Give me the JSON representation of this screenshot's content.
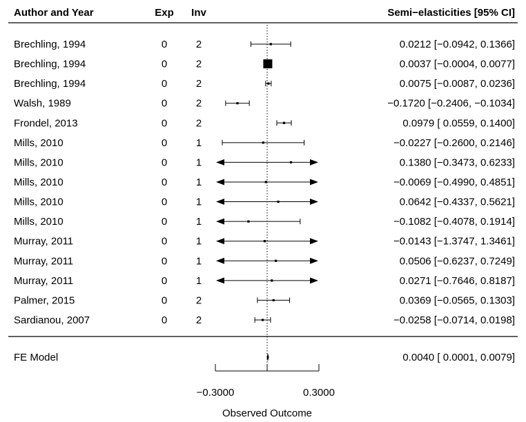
{
  "chart_data": {
    "type": "forest",
    "headers": {
      "study": "Author and Year",
      "exp": "Exp",
      "inv": "Inv",
      "estimate": "Semi−elasticities [95% CI]"
    },
    "xlabel": "Observed Outcome",
    "xlim": [
      -0.3,
      0.3
    ],
    "xticks": [
      -0.3,
      0,
      0.3
    ],
    "xtick_labels": [
      "−0.3000",
      "",
      "0.3000"
    ],
    "reference_line": 0,
    "rows": [
      {
        "study": "Brechling, 1994",
        "exp": "0",
        "inv": "2",
        "est": 0.0212,
        "lo": -0.0942,
        "hi": 0.1366,
        "label": "0.0212 [−0.0942,  0.1366]"
      },
      {
        "study": "Brechling, 1994",
        "exp": "0",
        "inv": "2",
        "est": 0.0037,
        "lo": -0.0004,
        "hi": 0.0077,
        "label": "0.0037 [−0.0004,  0.0077]"
      },
      {
        "study": "Brechling, 1994",
        "exp": "0",
        "inv": "2",
        "est": 0.0075,
        "lo": -0.0087,
        "hi": 0.0236,
        "label": "0.0075 [−0.0087,  0.0236]"
      },
      {
        "study": "Walsh, 1989",
        "exp": "0",
        "inv": "2",
        "est": -0.172,
        "lo": -0.2406,
        "hi": -0.1034,
        "label": "−0.1720 [−0.2406, −0.1034]"
      },
      {
        "study": "Frondel, 2013",
        "exp": "0",
        "inv": "2",
        "est": 0.0979,
        "lo": 0.0559,
        "hi": 0.14,
        "label": "0.0979 [ 0.0559,  0.1400]"
      },
      {
        "study": "Mills, 2010",
        "exp": "0",
        "inv": "1",
        "est": -0.0227,
        "lo": -0.26,
        "hi": 0.2146,
        "label": "−0.0227 [−0.2600,  0.2146]"
      },
      {
        "study": "Mills, 2010",
        "exp": "0",
        "inv": "1",
        "est": 0.138,
        "lo": -0.3473,
        "hi": 0.6233,
        "label": "0.1380 [−0.3473,  0.6233]"
      },
      {
        "study": "Mills, 2010",
        "exp": "0",
        "inv": "1",
        "est": -0.0069,
        "lo": -0.499,
        "hi": 0.4851,
        "label": "−0.0069 [−0.4990,  0.4851]"
      },
      {
        "study": "Mills, 2010",
        "exp": "0",
        "inv": "1",
        "est": 0.0642,
        "lo": -0.4337,
        "hi": 0.5621,
        "label": "0.0642 [−0.4337,  0.5621]"
      },
      {
        "study": "Mills, 2010",
        "exp": "0",
        "inv": "1",
        "est": -0.1082,
        "lo": -0.4078,
        "hi": 0.1914,
        "label": "−0.1082 [−0.4078,  0.1914]"
      },
      {
        "study": "Murray, 2011",
        "exp": "0",
        "inv": "1",
        "est": -0.0143,
        "lo": -1.3747,
        "hi": 1.3461,
        "label": "−0.0143 [−1.3747,  1.3461]"
      },
      {
        "study": "Murray, 2011",
        "exp": "0",
        "inv": "1",
        "est": 0.0506,
        "lo": -0.6237,
        "hi": 0.7249,
        "label": "0.0506 [−0.6237,  0.7249]"
      },
      {
        "study": "Murray, 2011",
        "exp": "0",
        "inv": "1",
        "est": 0.0271,
        "lo": -0.7646,
        "hi": 0.8187,
        "label": "0.0271 [−0.7646,  0.8187]"
      },
      {
        "study": "Palmer, 2015",
        "exp": "0",
        "inv": "2",
        "est": 0.0369,
        "lo": -0.0565,
        "hi": 0.1303,
        "label": "0.0369 [−0.0565,  0.1303]"
      },
      {
        "study": "Sardianou, 2007",
        "exp": "0",
        "inv": "2",
        "est": -0.0258,
        "lo": -0.0714,
        "hi": 0.0198,
        "label": "−0.0258 [−0.0714,  0.0198]"
      }
    ],
    "summary": {
      "study": "FE Model",
      "est": 0.004,
      "lo": 0.0001,
      "hi": 0.0079,
      "label": "0.0040 [ 0.0001,  0.0079]"
    }
  }
}
